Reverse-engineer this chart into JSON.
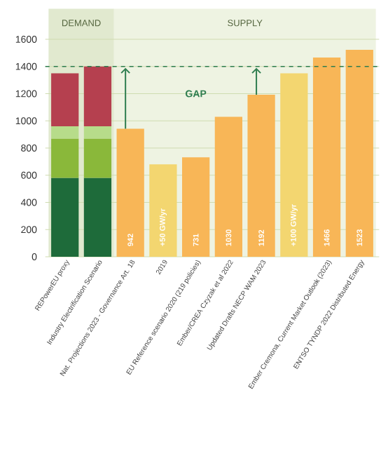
{
  "chart_data": {
    "type": "bar",
    "stacked": true,
    "categories": [
      "REPowerEU proxy",
      "Industry Electrification Scenario",
      "Nat. Projections 2023 - Governance Art. 18",
      "2019",
      "EU Reference scenario 2020 (219 policies)",
      "Ember/CREA Czyzak et al 2022",
      "Updated Drafts NECP WAM 2023",
      null,
      "Ember Cremona, Current Market Outlook (2023)",
      "ENTSO TYNDP 2022 Distributed Energy"
    ],
    "series": [
      {
        "color": "#1e6b3a",
        "values": [
          580,
          580,
          null,
          null,
          null,
          null,
          null,
          null,
          null,
          null
        ]
      },
      {
        "color": "#8ab83a",
        "values": [
          290,
          290,
          null,
          null,
          null,
          null,
          null,
          null,
          null,
          null
        ]
      },
      {
        "color": "#b7dc8a",
        "values": [
          90,
          90,
          null,
          null,
          null,
          null,
          null,
          null,
          null,
          null
        ]
      },
      {
        "color": "#b5404f",
        "values": [
          390,
          440,
          null,
          null,
          null,
          null,
          null,
          null,
          null,
          null
        ]
      },
      {
        "colors": [
          "#f8b657",
          "#f8b657",
          "#f8b657",
          "#f3d670",
          "#f8b657",
          "#f8b657",
          "#f8b657",
          "#f3d670",
          "#f8b657",
          "#f8b657"
        ],
        "values": [
          null,
          null,
          942,
          680,
          731,
          1030,
          1192,
          1350,
          1466,
          1523
        ],
        "value_labels": [
          null,
          null,
          "942",
          null,
          "731",
          "1030",
          "1192",
          null,
          "1466",
          "1523"
        ]
      }
    ],
    "ylim": [
      0,
      1600
    ],
    "yticks": [
      0,
      200,
      400,
      600,
      800,
      1000,
      1200,
      1400,
      1600
    ],
    "grid": "y",
    "ref_lines": [
      {
        "axis": "y",
        "value": 1400,
        "color": "#2e7d4f",
        "line_style": "dashed"
      }
    ],
    "bands": [
      {
        "axis": "x",
        "from": "REPowerEU proxy",
        "to": "Industry Electrification Scenario",
        "label": "DEMAND",
        "color": "#e1e9cf"
      },
      {
        "axis": "x",
        "from": "Nat. Projections 2023 - Governance Art. 18",
        "to": "ENTSO TYNDP 2022 Distributed Energy",
        "label": "SUPPLY",
        "color": "#eef3e2"
      }
    ],
    "annotations": [
      "GAP",
      "+50 GW/yr",
      "+100 GW/yr"
    ]
  }
}
